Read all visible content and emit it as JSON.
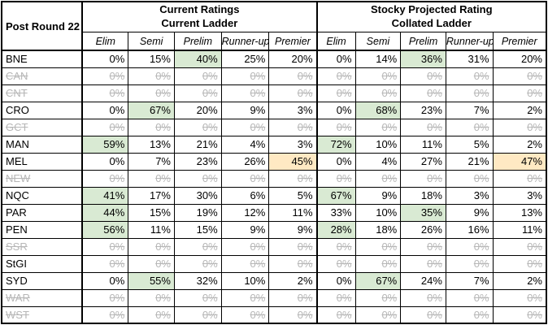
{
  "table": {
    "corner_label": "Post Round 22",
    "groups": [
      {
        "line1": "Current Ratings",
        "line2": "Current Ladder"
      },
      {
        "line1": "Stocky Projected Rating",
        "line2": "Collated Ladder"
      }
    ],
    "columns": [
      "Elim",
      "Semi",
      "Prelim",
      "Runner-up",
      "Premier"
    ],
    "colors": {
      "highlight_green": "#d9ead3",
      "highlight_yellow": "#ffe9c3",
      "struck_text": "#b7b7b7",
      "border": "#000000"
    },
    "rows": [
      {
        "team": "BNE",
        "label_struck": false,
        "values_struck": false,
        "current": [
          "0%",
          "15%",
          "40%",
          "25%",
          "20%"
        ],
        "current_hl": [
          "",
          "",
          "green",
          "",
          ""
        ],
        "projected": [
          "0%",
          "14%",
          "36%",
          "31%",
          "20%"
        ],
        "projected_hl": [
          "",
          "",
          "green",
          "",
          ""
        ]
      },
      {
        "team": "CAN",
        "label_struck": true,
        "values_struck": true,
        "current": [
          "0%",
          "0%",
          "0%",
          "0%",
          "0%"
        ],
        "current_hl": [
          "",
          "",
          "",
          "",
          ""
        ],
        "projected": [
          "0%",
          "0%",
          "0%",
          "0%",
          "0%"
        ],
        "projected_hl": [
          "",
          "",
          "",
          "",
          ""
        ]
      },
      {
        "team": "CNT",
        "label_struck": true,
        "values_struck": true,
        "current": [
          "0%",
          "0%",
          "0%",
          "0%",
          "0%"
        ],
        "current_hl": [
          "",
          "",
          "",
          "",
          ""
        ],
        "projected": [
          "0%",
          "0%",
          "0%",
          "0%",
          "0%"
        ],
        "projected_hl": [
          "",
          "",
          "",
          "",
          ""
        ]
      },
      {
        "team": "CRO",
        "label_struck": false,
        "values_struck": false,
        "current": [
          "0%",
          "67%",
          "20%",
          "9%",
          "3%"
        ],
        "current_hl": [
          "",
          "green",
          "",
          "",
          ""
        ],
        "projected": [
          "0%",
          "68%",
          "23%",
          "7%",
          "2%"
        ],
        "projected_hl": [
          "",
          "green",
          "",
          "",
          ""
        ]
      },
      {
        "team": "GCT",
        "label_struck": true,
        "values_struck": true,
        "current": [
          "0%",
          "0%",
          "0%",
          "0%",
          "0%"
        ],
        "current_hl": [
          "",
          "",
          "",
          "",
          ""
        ],
        "projected": [
          "0%",
          "0%",
          "0%",
          "0%",
          "0%"
        ],
        "projected_hl": [
          "",
          "",
          "",
          "",
          ""
        ]
      },
      {
        "team": "MAN",
        "label_struck": false,
        "values_struck": false,
        "current": [
          "59%",
          "13%",
          "21%",
          "4%",
          "3%"
        ],
        "current_hl": [
          "green",
          "",
          "",
          "",
          ""
        ],
        "projected": [
          "72%",
          "10%",
          "11%",
          "5%",
          "2%"
        ],
        "projected_hl": [
          "green",
          "",
          "",
          "",
          ""
        ]
      },
      {
        "team": "MEL",
        "label_struck": false,
        "values_struck": false,
        "current": [
          "0%",
          "7%",
          "23%",
          "26%",
          "45%"
        ],
        "current_hl": [
          "",
          "",
          "",
          "",
          "yellow"
        ],
        "projected": [
          "0%",
          "4%",
          "27%",
          "21%",
          "47%"
        ],
        "projected_hl": [
          "",
          "",
          "",
          "",
          "yellow"
        ]
      },
      {
        "team": "NEW",
        "label_struck": true,
        "values_struck": true,
        "current": [
          "0%",
          "0%",
          "0%",
          "0%",
          "0%"
        ],
        "current_hl": [
          "",
          "",
          "",
          "",
          ""
        ],
        "projected": [
          "0%",
          "0%",
          "0%",
          "0%",
          "0%"
        ],
        "projected_hl": [
          "",
          "",
          "",
          "",
          ""
        ]
      },
      {
        "team": "NQC",
        "label_struck": false,
        "values_struck": false,
        "current": [
          "41%",
          "17%",
          "30%",
          "6%",
          "5%"
        ],
        "current_hl": [
          "green",
          "",
          "",
          "",
          ""
        ],
        "projected": [
          "67%",
          "9%",
          "18%",
          "3%",
          "3%"
        ],
        "projected_hl": [
          "green",
          "",
          "",
          "",
          ""
        ]
      },
      {
        "team": "PAR",
        "label_struck": false,
        "values_struck": false,
        "current": [
          "44%",
          "15%",
          "19%",
          "12%",
          "11%"
        ],
        "current_hl": [
          "green",
          "",
          "",
          "",
          ""
        ],
        "projected": [
          "33%",
          "10%",
          "35%",
          "9%",
          "13%"
        ],
        "projected_hl": [
          "",
          "",
          "green",
          "",
          ""
        ]
      },
      {
        "team": "PEN",
        "label_struck": false,
        "values_struck": false,
        "current": [
          "56%",
          "11%",
          "15%",
          "9%",
          "9%"
        ],
        "current_hl": [
          "green",
          "",
          "",
          "",
          ""
        ],
        "projected": [
          "28%",
          "18%",
          "26%",
          "16%",
          "11%"
        ],
        "projected_hl": [
          "green",
          "",
          "",
          "",
          ""
        ]
      },
      {
        "team": "SSR",
        "label_struck": true,
        "values_struck": true,
        "current": [
          "0%",
          "0%",
          "0%",
          "0%",
          "0%"
        ],
        "current_hl": [
          "",
          "",
          "",
          "",
          ""
        ],
        "projected": [
          "0%",
          "0%",
          "0%",
          "0%",
          "0%"
        ],
        "projected_hl": [
          "",
          "",
          "",
          "",
          ""
        ]
      },
      {
        "team": "StGI",
        "label_struck": false,
        "values_struck": true,
        "current": [
          "0%",
          "0%",
          "0%",
          "0%",
          "0%"
        ],
        "current_hl": [
          "",
          "",
          "",
          "",
          ""
        ],
        "projected": [
          "0%",
          "0%",
          "0%",
          "0%",
          "0%"
        ],
        "projected_hl": [
          "",
          "",
          "",
          "",
          ""
        ]
      },
      {
        "team": "SYD",
        "label_struck": false,
        "values_struck": false,
        "current": [
          "0%",
          "55%",
          "32%",
          "10%",
          "2%"
        ],
        "current_hl": [
          "",
          "green",
          "",
          "",
          ""
        ],
        "projected": [
          "0%",
          "67%",
          "24%",
          "7%",
          "2%"
        ],
        "projected_hl": [
          "",
          "green",
          "",
          "",
          ""
        ]
      },
      {
        "team": "WAR",
        "label_struck": true,
        "values_struck": true,
        "current": [
          "0%",
          "0%",
          "0%",
          "0%",
          "0%"
        ],
        "current_hl": [
          "",
          "",
          "",
          "",
          ""
        ],
        "projected": [
          "0%",
          "0%",
          "0%",
          "0%",
          "0%"
        ],
        "projected_hl": [
          "",
          "",
          "",
          "",
          ""
        ]
      },
      {
        "team": "WST",
        "label_struck": true,
        "values_struck": true,
        "current": [
          "0%",
          "0%",
          "0%",
          "0%",
          "0%"
        ],
        "current_hl": [
          "",
          "",
          "",
          "",
          ""
        ],
        "projected": [
          "0%",
          "0%",
          "0%",
          "0%",
          "0%"
        ],
        "projected_hl": [
          "",
          "",
          "",
          "",
          ""
        ]
      }
    ]
  }
}
